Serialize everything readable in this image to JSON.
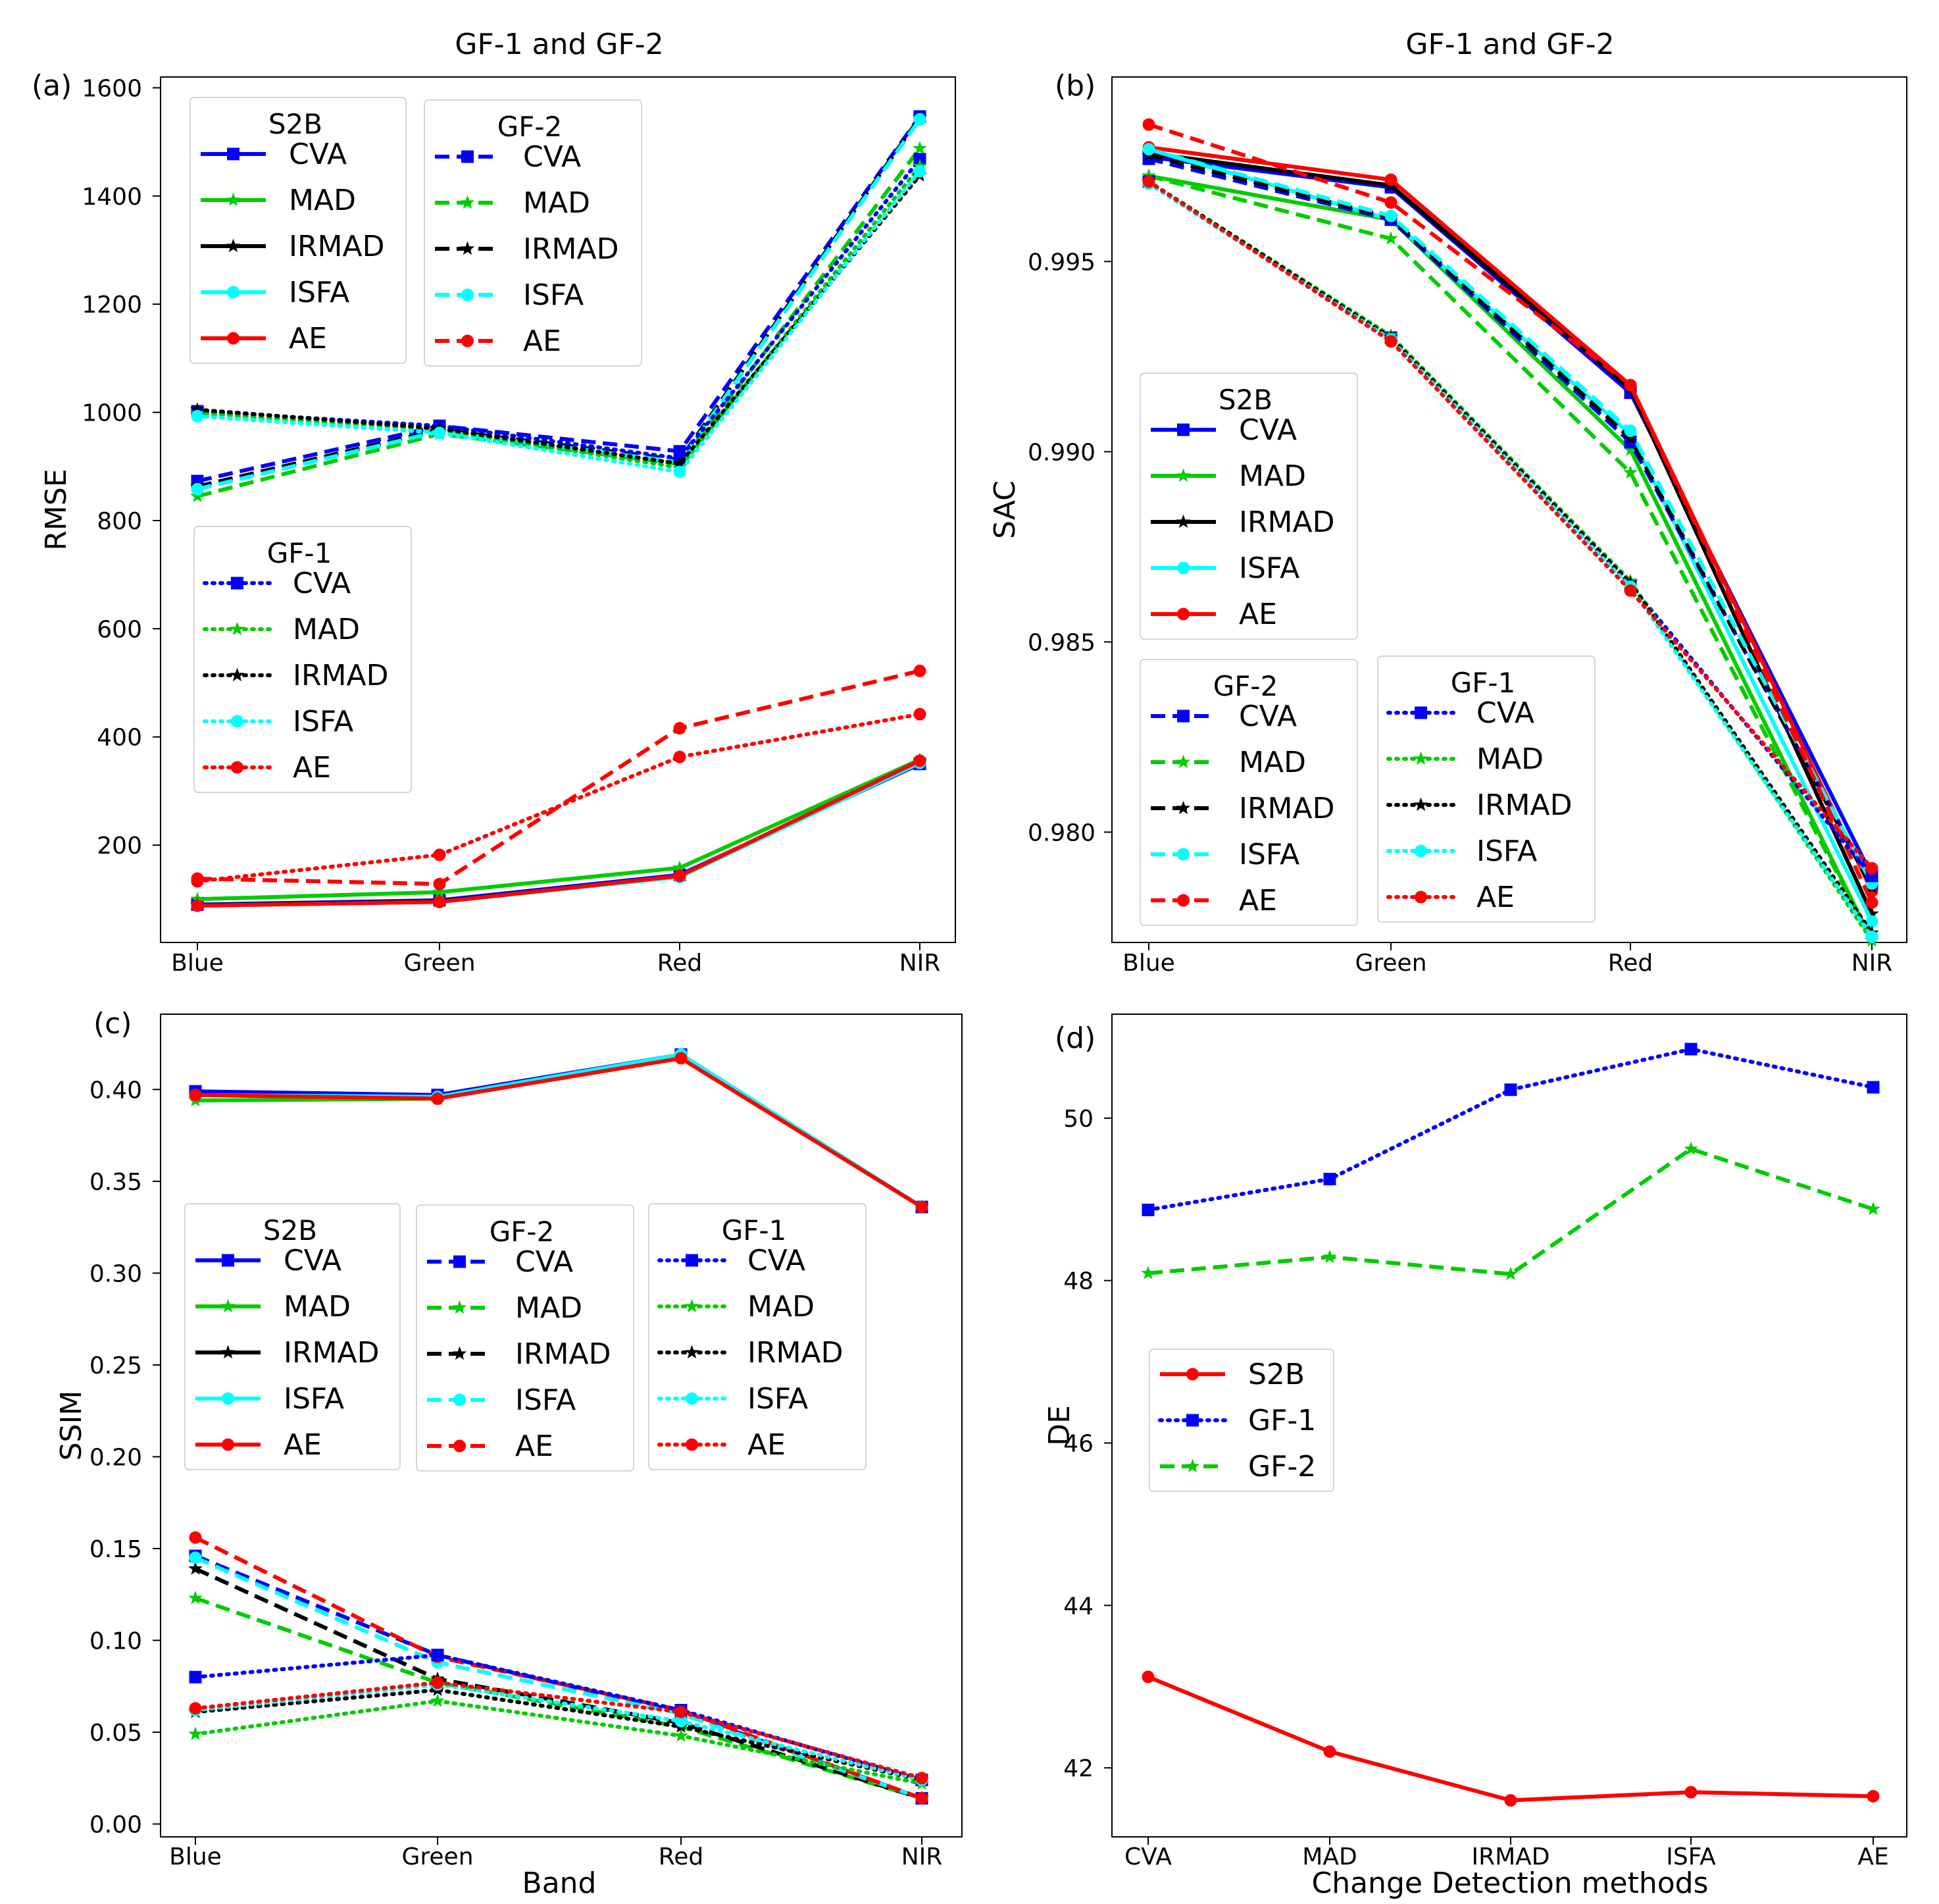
{
  "chart_data": [
    {
      "id": "a",
      "panel_label": "(a)",
      "type": "line",
      "title": "GF-1 and GF-2",
      "xlabel": "",
      "ylabel": "RMSE",
      "categories": [
        "Blue",
        "Green",
        "Red",
        "NIR"
      ],
      "yticks": [
        "200",
        "400",
        "600",
        "800",
        "1000",
        "1200",
        "1400",
        "1600"
      ],
      "ylim": [
        20,
        1620
      ],
      "legends": [
        {
          "title": "S2B",
          "group": "S2B",
          "position": "upper-left"
        },
        {
          "title": "GF-2",
          "group": "GF-2",
          "position": "upper-center"
        },
        {
          "title": "GF-1",
          "group": "GF-1",
          "position": "center-left"
        }
      ],
      "series": [
        {
          "name": "CVA",
          "group": "S2B",
          "color": "#0000ff",
          "style": "solid",
          "marker": "square",
          "values": [
            90,
            98,
            145,
            350
          ]
        },
        {
          "name": "MAD",
          "group": "S2B",
          "color": "#00cc00",
          "style": "solid",
          "marker": "star",
          "values": [
            100,
            113,
            158,
            358
          ]
        },
        {
          "name": "IRMAD",
          "group": "S2B",
          "color": "#000000",
          "style": "solid",
          "marker": "star",
          "values": [
            89,
            96,
            142,
            354
          ]
        },
        {
          "name": "ISFA",
          "group": "S2B",
          "color": "#00ffff",
          "style": "solid",
          "marker": "circle",
          "values": [
            88,
            95,
            141,
            352
          ]
        },
        {
          "name": "AE",
          "group": "S2B",
          "color": "#ff0000",
          "style": "solid",
          "marker": "circle",
          "values": [
            88,
            95,
            143,
            356
          ]
        },
        {
          "name": "CVA",
          "group": "GF-2",
          "color": "#0000ff",
          "style": "dashed",
          "marker": "square",
          "values": [
            873,
            975,
            928,
            1547
          ]
        },
        {
          "name": "MAD",
          "group": "GF-2",
          "color": "#00cc00",
          "style": "dashed",
          "marker": "star",
          "values": [
            845,
            960,
            905,
            1488
          ]
        },
        {
          "name": "IRMAD",
          "group": "GF-2",
          "color": "#000000",
          "style": "dashed",
          "marker": "star",
          "values": [
            863,
            968,
            912,
            1545
          ]
        },
        {
          "name": "ISFA",
          "group": "GF-2",
          "color": "#00ffff",
          "style": "dashed",
          "marker": "circle",
          "values": [
            858,
            965,
            908,
            1542
          ]
        },
        {
          "name": "AE",
          "group": "GF-2",
          "color": "#ff0000",
          "style": "dashed",
          "marker": "circle",
          "values": [
            138,
            128,
            416,
            522
          ]
        },
        {
          "name": "CVA",
          "group": "GF-1",
          "color": "#0000ff",
          "style": "dotted",
          "marker": "square",
          "values": [
            1002,
            975,
            915,
            1468
          ]
        },
        {
          "name": "MAD",
          "group": "GF-1",
          "color": "#00cc00",
          "style": "dotted",
          "marker": "star",
          "values": [
            998,
            968,
            898,
            1455
          ]
        },
        {
          "name": "IRMAD",
          "group": "GF-1",
          "color": "#000000",
          "style": "dotted",
          "marker": "star",
          "values": [
            1005,
            970,
            905,
            1438
          ]
        },
        {
          "name": "ISFA",
          "group": "GF-1",
          "color": "#00ffff",
          "style": "dotted",
          "marker": "circle",
          "values": [
            993,
            962,
            890,
            1446
          ]
        },
        {
          "name": "AE",
          "group": "GF-1",
          "color": "#ff0000",
          "style": "dotted",
          "marker": "circle",
          "values": [
            133,
            182,
            363,
            442
          ]
        }
      ]
    },
    {
      "id": "b",
      "panel_label": "(b)",
      "type": "line",
      "title": "GF-1 and GF-2",
      "xlabel": "",
      "ylabel": "SAC",
      "categories": [
        "Blue",
        "Green",
        "Red",
        "NIR"
      ],
      "yticks": [
        "0.980",
        "0.985",
        "0.990",
        "0.995"
      ],
      "ylim": [
        0.9771,
        0.99985
      ],
      "legends": [
        {
          "title": "S2B",
          "group": "S2B",
          "position": "center-left"
        },
        {
          "title": "GF-2",
          "group": "GF-2",
          "position": "lower-left"
        },
        {
          "title": "GF-1",
          "group": "GF-1",
          "position": "lower-center"
        }
      ],
      "series": [
        {
          "name": "CVA",
          "group": "S2B",
          "color": "#0000ff",
          "style": "solid",
          "marker": "square",
          "values": [
            0.99775,
            0.99695,
            0.99155,
            0.97885
          ]
        },
        {
          "name": "MAD",
          "group": "S2B",
          "color": "#00cc00",
          "style": "solid",
          "marker": "star",
          "values": [
            0.99725,
            0.9961,
            0.99005,
            0.97715
          ]
        },
        {
          "name": "IRMAD",
          "group": "S2B",
          "color": "#000000",
          "style": "solid",
          "marker": "star",
          "values": [
            0.99785,
            0.997,
            0.99165,
            0.97785
          ]
        },
        {
          "name": "ISFA",
          "group": "S2B",
          "color": "#00ffff",
          "style": "solid",
          "marker": "circle",
          "values": [
            0.99795,
            0.9961,
            0.99045,
            0.97765
          ]
        },
        {
          "name": "AE",
          "group": "S2B",
          "color": "#ff0000",
          "style": "solid",
          "marker": "circle",
          "values": [
            0.998,
            0.99715,
            0.99175,
            0.97845
          ]
        },
        {
          "name": "CVA",
          "group": "GF-2",
          "color": "#0000ff",
          "style": "dashed",
          "marker": "square",
          "values": [
            0.9977,
            0.9961,
            0.99025,
            0.97865
          ]
        },
        {
          "name": "MAD",
          "group": "GF-2",
          "color": "#00cc00",
          "style": "dashed",
          "marker": "star",
          "values": [
            0.99725,
            0.9956,
            0.98945,
            0.97715
          ]
        },
        {
          "name": "IRMAD",
          "group": "GF-2",
          "color": "#000000",
          "style": "dashed",
          "marker": "star",
          "values": [
            0.9978,
            0.99615,
            0.99035,
            0.97855
          ]
        },
        {
          "name": "ISFA",
          "group": "GF-2",
          "color": "#00ffff",
          "style": "dashed",
          "marker": "circle",
          "values": [
            0.99795,
            0.9962,
            0.99055,
            0.97865
          ]
        },
        {
          "name": "AE",
          "group": "GF-2",
          "color": "#ff0000",
          "style": "dashed",
          "marker": "circle",
          "values": [
            0.9986,
            0.99655,
            0.99175,
            0.97815
          ]
        },
        {
          "name": "CVA",
          "group": "GF-1",
          "color": "#0000ff",
          "style": "dotted",
          "marker": "square",
          "values": [
            0.9971,
            0.993,
            0.9865,
            0.97885
          ]
        },
        {
          "name": "MAD",
          "group": "GF-1",
          "color": "#00cc00",
          "style": "dotted",
          "marker": "star",
          "values": [
            0.9971,
            0.99305,
            0.9866,
            0.97715
          ]
        },
        {
          "name": "IRMAD",
          "group": "GF-1",
          "color": "#000000",
          "style": "dotted",
          "marker": "star",
          "values": [
            0.9971,
            0.993,
            0.98655,
            0.97735
          ]
        },
        {
          "name": "ISFA",
          "group": "GF-1",
          "color": "#00ffff",
          "style": "dotted",
          "marker": "circle",
          "values": [
            0.99705,
            0.99295,
            0.98645,
            0.97725
          ]
        },
        {
          "name": "AE",
          "group": "GF-1",
          "color": "#ff0000",
          "style": "dotted",
          "marker": "circle",
          "values": [
            0.9971,
            0.9929,
            0.98635,
            0.97905
          ]
        }
      ]
    },
    {
      "id": "c",
      "panel_label": "(c)",
      "type": "line",
      "title": "",
      "xlabel": "Band",
      "ylabel": "SSIM",
      "categories": [
        "Blue",
        "Green",
        "Red",
        "NIR"
      ],
      "yticks": [
        "0.00",
        "0.05",
        "0.10",
        "0.15",
        "0.20",
        "0.25",
        "0.30",
        "0.35",
        "0.40"
      ],
      "ylim": [
        -0.007,
        0.441
      ],
      "legends": [
        {
          "title": "S2B",
          "group": "S2B",
          "position": "center-left"
        },
        {
          "title": "GF-2",
          "group": "GF-2",
          "position": "center"
        },
        {
          "title": "GF-1",
          "group": "GF-1",
          "position": "center-right"
        }
      ],
      "series": [
        {
          "name": "CVA",
          "group": "S2B",
          "color": "#0000ff",
          "style": "solid",
          "marker": "square",
          "values": [
            0.399,
            0.397,
            0.419,
            0.336
          ]
        },
        {
          "name": "MAD",
          "group": "S2B",
          "color": "#00cc00",
          "style": "solid",
          "marker": "star",
          "values": [
            0.394,
            0.395,
            0.419,
            0.336
          ]
        },
        {
          "name": "IRMAD",
          "group": "S2B",
          "color": "#000000",
          "style": "solid",
          "marker": "star",
          "values": [
            0.397,
            0.396,
            0.418,
            0.336
          ]
        },
        {
          "name": "ISFA",
          "group": "S2B",
          "color": "#00ffff",
          "style": "solid",
          "marker": "circle",
          "values": [
            0.397,
            0.396,
            0.419,
            0.336
          ]
        },
        {
          "name": "AE",
          "group": "S2B",
          "color": "#ff0000",
          "style": "solid",
          "marker": "circle",
          "values": [
            0.397,
            0.395,
            0.417,
            0.336
          ]
        },
        {
          "name": "CVA",
          "group": "GF-2",
          "color": "#0000ff",
          "style": "dashed",
          "marker": "square",
          "values": [
            0.146,
            0.092,
            0.061,
            0.014
          ]
        },
        {
          "name": "MAD",
          "group": "GF-2",
          "color": "#00cc00",
          "style": "dashed",
          "marker": "star",
          "values": [
            0.123,
            0.077,
            0.053,
            0.014
          ]
        },
        {
          "name": "IRMAD",
          "group": "GF-2",
          "color": "#000000",
          "style": "dashed",
          "marker": "star",
          "values": [
            0.139,
            0.079,
            0.055,
            0.014
          ]
        },
        {
          "name": "ISFA",
          "group": "GF-2",
          "color": "#00ffff",
          "style": "dashed",
          "marker": "circle",
          "values": [
            0.145,
            0.088,
            0.06,
            0.014
          ]
        },
        {
          "name": "AE",
          "group": "GF-2",
          "color": "#ff0000",
          "style": "dashed",
          "marker": "circle",
          "values": [
            0.156,
            0.091,
            0.062,
            0.014
          ]
        },
        {
          "name": "CVA",
          "group": "GF-1",
          "color": "#0000ff",
          "style": "dotted",
          "marker": "square",
          "values": [
            0.08,
            0.092,
            0.062,
            0.024
          ]
        },
        {
          "name": "MAD",
          "group": "GF-1",
          "color": "#00cc00",
          "style": "dotted",
          "marker": "star",
          "values": [
            0.049,
            0.067,
            0.048,
            0.022
          ]
        },
        {
          "name": "IRMAD",
          "group": "GF-1",
          "color": "#000000",
          "style": "dotted",
          "marker": "star",
          "values": [
            0.061,
            0.073,
            0.053,
            0.024
          ]
        },
        {
          "name": "ISFA",
          "group": "GF-1",
          "color": "#00ffff",
          "style": "dotted",
          "marker": "circle",
          "values": [
            0.062,
            0.076,
            0.056,
            0.024
          ]
        },
        {
          "name": "AE",
          "group": "GF-1",
          "color": "#ff0000",
          "style": "dotted",
          "marker": "circle",
          "values": [
            0.063,
            0.077,
            0.061,
            0.025
          ]
        }
      ]
    },
    {
      "id": "d",
      "panel_label": "(d)",
      "type": "line",
      "title": "",
      "xlabel": "Change Detection methods",
      "ylabel": "DE",
      "categories": [
        "CVA",
        "MAD",
        "IRMAD",
        "ISFA",
        "AE"
      ],
      "yticks": [
        "42",
        "44",
        "46",
        "48",
        "50"
      ],
      "ylim": [
        41.15,
        51.28
      ],
      "legends": [
        {
          "title": "",
          "group": "all",
          "position": "center-left"
        }
      ],
      "series": [
        {
          "name": "S2B",
          "group": "all",
          "color": "#ff0000",
          "style": "solid",
          "marker": "circle",
          "values": [
            43.12,
            42.2,
            41.6,
            41.7,
            41.65
          ]
        },
        {
          "name": "GF-1",
          "group": "all",
          "color": "#0000ff",
          "style": "dotted",
          "marker": "square",
          "values": [
            48.87,
            49.25,
            50.35,
            50.85,
            50.38
          ]
        },
        {
          "name": "GF-2",
          "group": "all",
          "color": "#00cc00",
          "style": "dashed",
          "marker": "star",
          "values": [
            48.09,
            48.29,
            48.08,
            49.62,
            48.88
          ]
        }
      ]
    }
  ]
}
